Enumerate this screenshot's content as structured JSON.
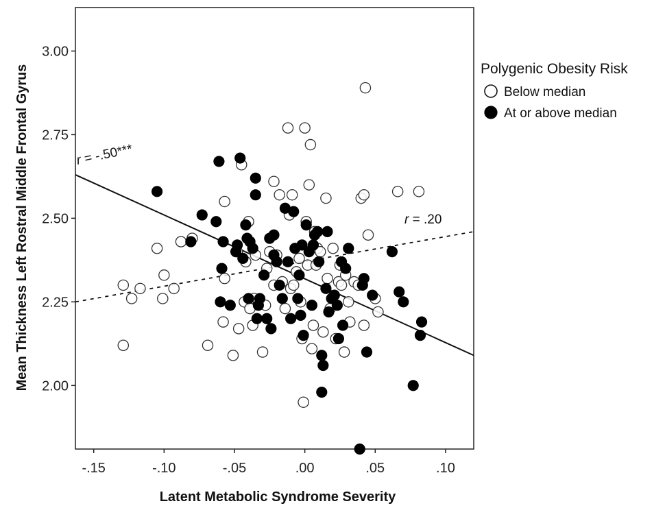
{
  "chart_data": {
    "type": "scatter",
    "xlabel": "Latent Metabolic Syndrome Severity",
    "ylabel": "Mean Thickness Left Rostral Middle Frontal Gyrus",
    "xlim": [
      -0.163,
      0.12
    ],
    "ylim": [
      1.81,
      3.13
    ],
    "x_ticks": [
      -0.15,
      -0.1,
      -0.05,
      0.0,
      0.05,
      0.1
    ],
    "x_tick_labels": [
      "-.15",
      "-.10",
      "-.05",
      ".00",
      ".05",
      ".10"
    ],
    "y_ticks": [
      2.0,
      2.25,
      2.5,
      2.75,
      3.0
    ],
    "y_tick_labels": [
      "2.00",
      "2.25",
      "2.50",
      "2.75",
      "3.00"
    ],
    "grid": false,
    "legend": {
      "title": "Polygenic Obesity Risk",
      "position": "right",
      "entries": [
        "Below median",
        "At or above median"
      ]
    },
    "series": [
      {
        "name": "Below median",
        "marker": "open-circle",
        "points": [
          [
            -0.129,
            2.12
          ],
          [
            -0.129,
            2.3
          ],
          [
            -0.123,
            2.26
          ],
          [
            -0.117,
            2.29
          ],
          [
            -0.105,
            2.41
          ],
          [
            -0.101,
            2.26
          ],
          [
            -0.1,
            2.33
          ],
          [
            -0.093,
            2.29
          ],
          [
            -0.088,
            2.43
          ],
          [
            -0.08,
            2.44
          ],
          [
            -0.069,
            2.12
          ],
          [
            -0.057,
            2.32
          ],
          [
            -0.057,
            2.55
          ],
          [
            -0.058,
            2.19
          ],
          [
            -0.051,
            2.09
          ],
          [
            -0.048,
            2.4
          ],
          [
            -0.047,
            2.17
          ],
          [
            -0.045,
            2.66
          ],
          [
            -0.043,
            2.25
          ],
          [
            -0.042,
            2.37
          ],
          [
            -0.04,
            2.49
          ],
          [
            -0.039,
            2.23
          ],
          [
            -0.037,
            2.18
          ],
          [
            -0.036,
            2.26
          ],
          [
            -0.035,
            2.39
          ],
          [
            -0.033,
            2.25
          ],
          [
            -0.03,
            2.1
          ],
          [
            -0.028,
            2.24
          ],
          [
            -0.027,
            2.35
          ],
          [
            -0.025,
            2.4
          ],
          [
            -0.022,
            2.61
          ],
          [
            -0.022,
            2.3
          ],
          [
            -0.02,
            2.39
          ],
          [
            -0.018,
            2.57
          ],
          [
            -0.016,
            2.31
          ],
          [
            -0.014,
            2.23
          ],
          [
            -0.012,
            2.77
          ],
          [
            -0.011,
            2.51
          ],
          [
            -0.01,
            2.29
          ],
          [
            -0.009,
            2.57
          ],
          [
            -0.008,
            2.3
          ],
          [
            -0.006,
            2.34
          ],
          [
            -0.004,
            2.38
          ],
          [
            -0.003,
            2.25
          ],
          [
            -0.002,
            2.14
          ],
          [
            -0.001,
            1.95
          ],
          [
            0.0,
            2.77
          ],
          [
            0.001,
            2.49
          ],
          [
            0.002,
            2.36
          ],
          [
            0.003,
            2.6
          ],
          [
            0.004,
            2.72
          ],
          [
            0.005,
            2.11
          ],
          [
            0.006,
            2.18
          ],
          [
            0.007,
            2.46
          ],
          [
            0.008,
            2.36
          ],
          [
            0.009,
            2.41
          ],
          [
            0.011,
            2.4
          ],
          [
            0.013,
            2.16
          ],
          [
            0.015,
            2.56
          ],
          [
            0.016,
            2.32
          ],
          [
            0.018,
            2.23
          ],
          [
            0.02,
            2.41
          ],
          [
            0.022,
            2.14
          ],
          [
            0.024,
            2.31
          ],
          [
            0.025,
            2.36
          ],
          [
            0.026,
            2.3
          ],
          [
            0.028,
            2.1
          ],
          [
            0.029,
            2.33
          ],
          [
            0.031,
            2.25
          ],
          [
            0.032,
            2.19
          ],
          [
            0.035,
            2.31
          ],
          [
            0.038,
            2.3
          ],
          [
            0.04,
            2.56
          ],
          [
            0.042,
            2.18
          ],
          [
            0.042,
            2.57
          ],
          [
            0.043,
            2.89
          ],
          [
            0.045,
            2.45
          ],
          [
            0.05,
            2.26
          ],
          [
            0.052,
            2.22
          ],
          [
            0.066,
            2.58
          ],
          [
            0.081,
            2.58
          ]
        ]
      },
      {
        "name": "At or above median",
        "marker": "filled-circle",
        "points": [
          [
            -0.105,
            2.58
          ],
          [
            -0.081,
            2.43
          ],
          [
            -0.073,
            2.51
          ],
          [
            -0.063,
            2.49
          ],
          [
            -0.061,
            2.67
          ],
          [
            -0.06,
            2.25
          ],
          [
            -0.059,
            2.35
          ],
          [
            -0.058,
            2.43
          ],
          [
            -0.053,
            2.24
          ],
          [
            -0.049,
            2.4
          ],
          [
            -0.048,
            2.42
          ],
          [
            -0.046,
            2.68
          ],
          [
            -0.044,
            2.38
          ],
          [
            -0.042,
            2.48
          ],
          [
            -0.041,
            2.44
          ],
          [
            -0.04,
            2.26
          ],
          [
            -0.039,
            2.43
          ],
          [
            -0.037,
            2.41
          ],
          [
            -0.035,
            2.57
          ],
          [
            -0.035,
            2.62
          ],
          [
            -0.034,
            2.2
          ],
          [
            -0.033,
            2.24
          ],
          [
            -0.032,
            2.26
          ],
          [
            -0.029,
            2.33
          ],
          [
            -0.027,
            2.2
          ],
          [
            -0.025,
            2.44
          ],
          [
            -0.024,
            2.17
          ],
          [
            -0.022,
            2.45
          ],
          [
            -0.022,
            2.39
          ],
          [
            -0.02,
            2.37
          ],
          [
            -0.018,
            2.3
          ],
          [
            -0.016,
            2.26
          ],
          [
            -0.014,
            2.53
          ],
          [
            -0.012,
            2.37
          ],
          [
            -0.01,
            2.2
          ],
          [
            -0.008,
            2.52
          ],
          [
            -0.007,
            2.41
          ],
          [
            -0.005,
            2.26
          ],
          [
            -0.004,
            2.33
          ],
          [
            -0.003,
            2.21
          ],
          [
            -0.001,
            2.15
          ],
          [
            -0.002,
            2.42
          ],
          [
            0.001,
            2.48
          ],
          [
            0.003,
            2.4
          ],
          [
            0.005,
            2.24
          ],
          [
            0.006,
            2.42
          ],
          [
            0.007,
            2.45
          ],
          [
            0.009,
            2.46
          ],
          [
            0.01,
            2.37
          ],
          [
            0.012,
            2.09
          ],
          [
            0.012,
            1.98
          ],
          [
            0.013,
            2.06
          ],
          [
            0.015,
            2.29
          ],
          [
            0.016,
            2.46
          ],
          [
            0.017,
            2.22
          ],
          [
            0.019,
            2.26
          ],
          [
            0.021,
            2.27
          ],
          [
            0.023,
            2.24
          ],
          [
            0.024,
            2.14
          ],
          [
            0.026,
            2.37
          ],
          [
            0.027,
            2.18
          ],
          [
            0.029,
            2.35
          ],
          [
            0.031,
            2.41
          ],
          [
            0.039,
            1.81
          ],
          [
            0.041,
            2.3
          ],
          [
            0.042,
            2.32
          ],
          [
            0.044,
            2.1
          ],
          [
            0.048,
            2.27
          ],
          [
            0.062,
            2.4
          ],
          [
            0.067,
            2.28
          ],
          [
            0.07,
            2.25
          ],
          [
            0.077,
            2.0
          ],
          [
            0.082,
            2.15
          ],
          [
            0.083,
            2.19
          ]
        ]
      }
    ],
    "fit_lines": [
      {
        "series": "Below median",
        "style": "dashed",
        "x": [
          -0.163,
          0.12
        ],
        "y": [
          2.25,
          2.46
        ]
      },
      {
        "series": "At or above median",
        "style": "solid",
        "x": [
          -0.163,
          0.12
        ],
        "y": [
          2.63,
          2.09
        ]
      }
    ],
    "annotations": [
      {
        "text_r": "r",
        "text_value": " = -.50***"
      },
      {
        "text_r": "r",
        "text_value": " = .20"
      }
    ]
  }
}
